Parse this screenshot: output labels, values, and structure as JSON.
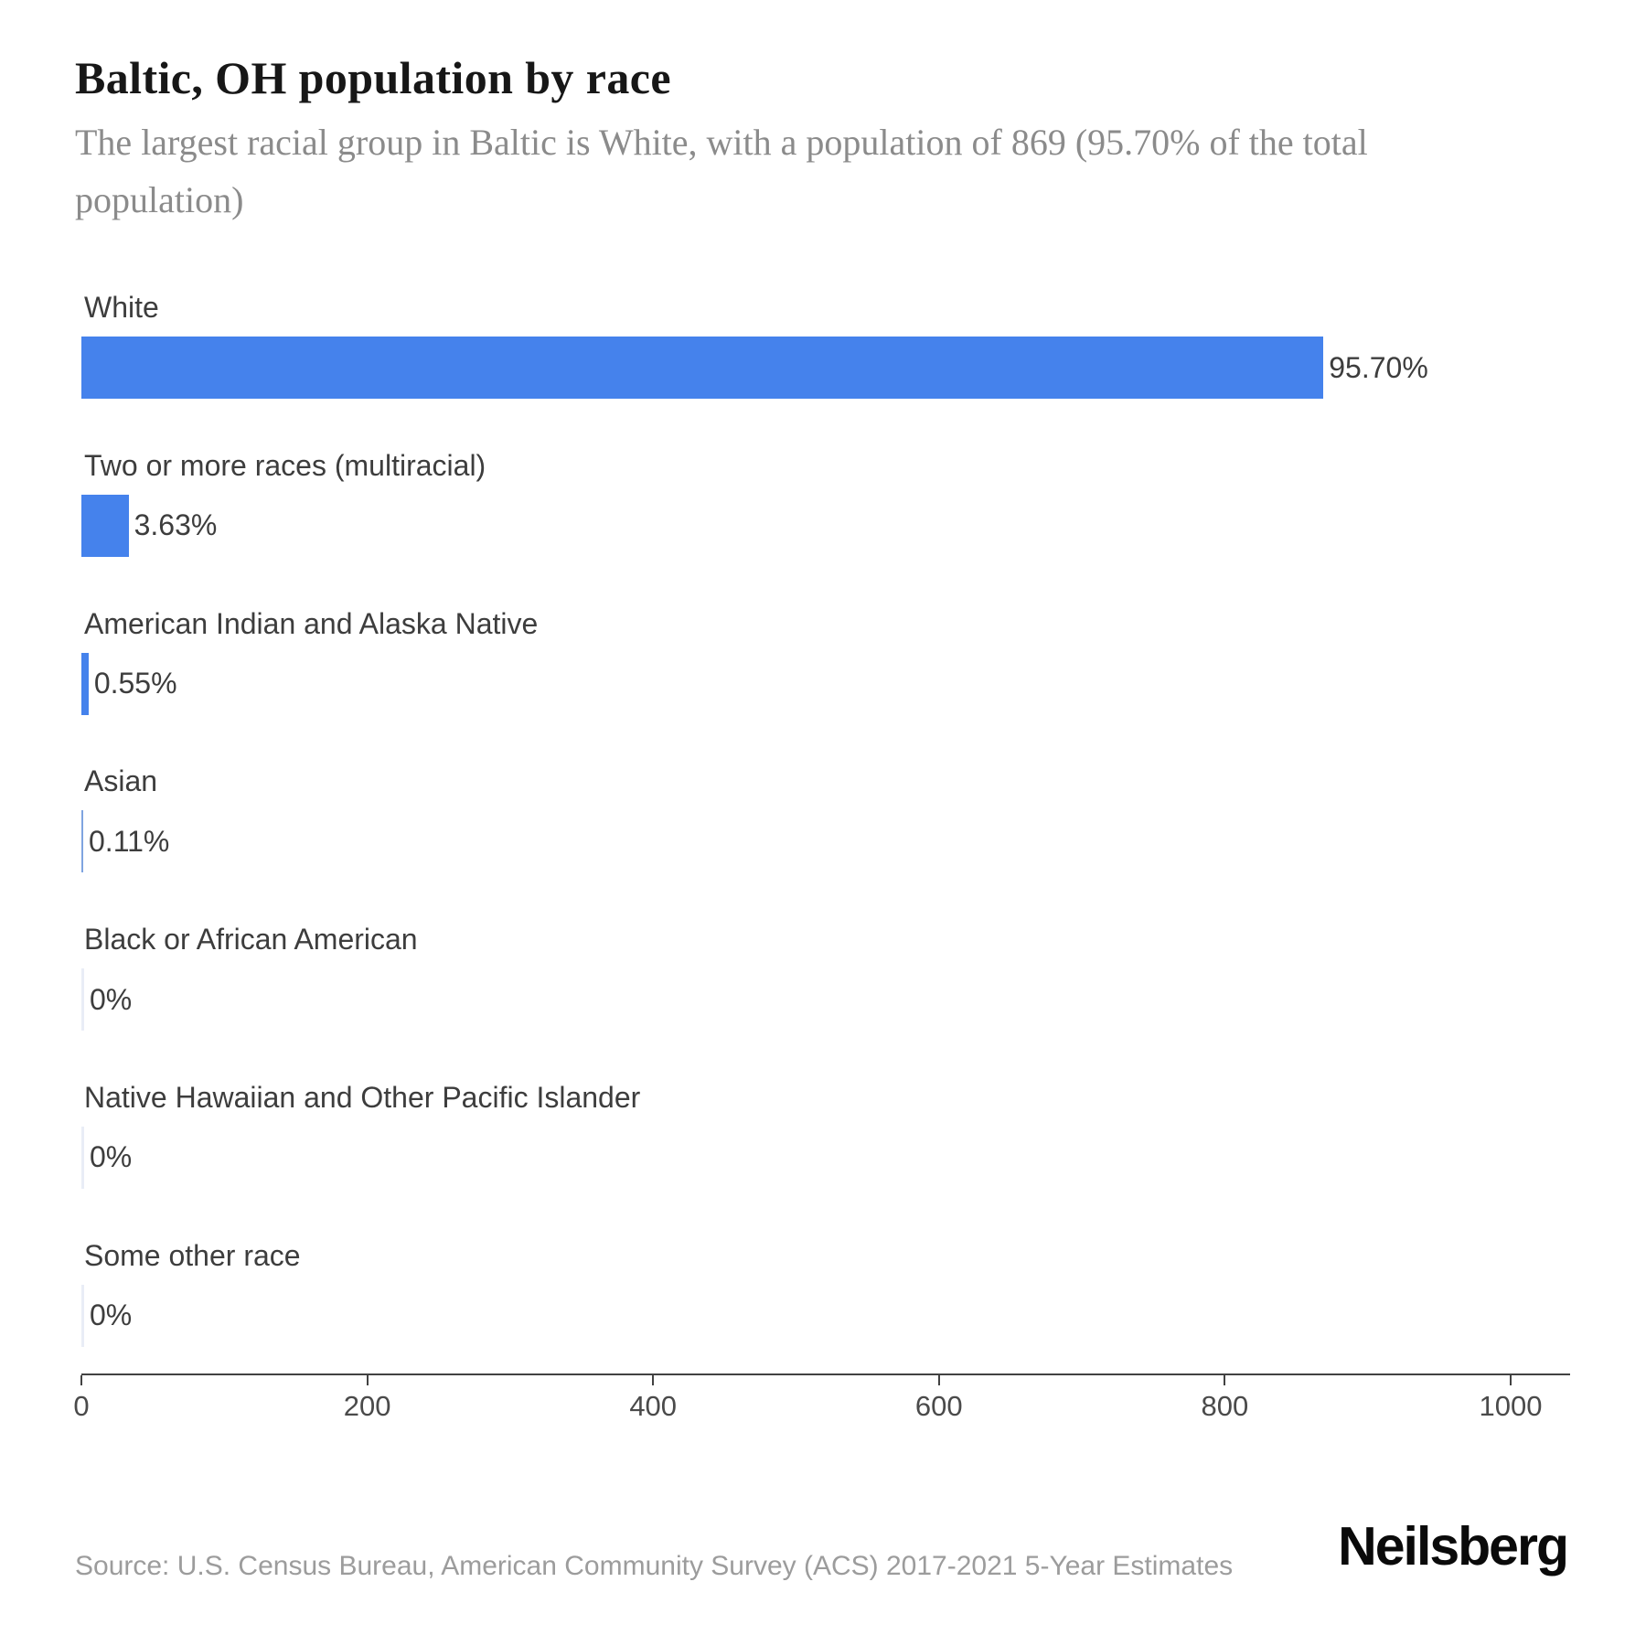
{
  "header": {
    "title": "Baltic, OH population by race",
    "subtitle": "The largest racial group in Baltic is White, with a population of 869 (95.70% of the total population)"
  },
  "chart_data": {
    "type": "bar",
    "orientation": "horizontal",
    "title": "Baltic, OH population by race",
    "categories": [
      "White",
      "Two or more races (multiracial)",
      "American Indian and Alaska Native",
      "Asian",
      "Black or African American",
      "Native Hawaiian and Other Pacific Islander",
      "Some other race"
    ],
    "values_population": [
      869,
      33,
      5,
      1,
      0,
      0,
      0
    ],
    "value_labels": [
      "95.70%",
      "3.63%",
      "0.55%",
      "0.11%",
      "0%",
      "0%",
      "0%"
    ],
    "xlabel": "",
    "ylabel": "",
    "x_axis": {
      "ticks": [
        0,
        200,
        400,
        600,
        800,
        1000
      ],
      "range": [
        0,
        1042
      ]
    },
    "grid": false,
    "legend": false,
    "bar_color": "#4582ec",
    "bar_color_hairline": "#7fa4e0",
    "bar_color_zero": "#e9edf6"
  },
  "footer": {
    "source": "Source: U.S. Census Bureau, American Community Survey (ACS) 2017-2021 5-Year Estimates",
    "brand": "Neilsberg"
  }
}
